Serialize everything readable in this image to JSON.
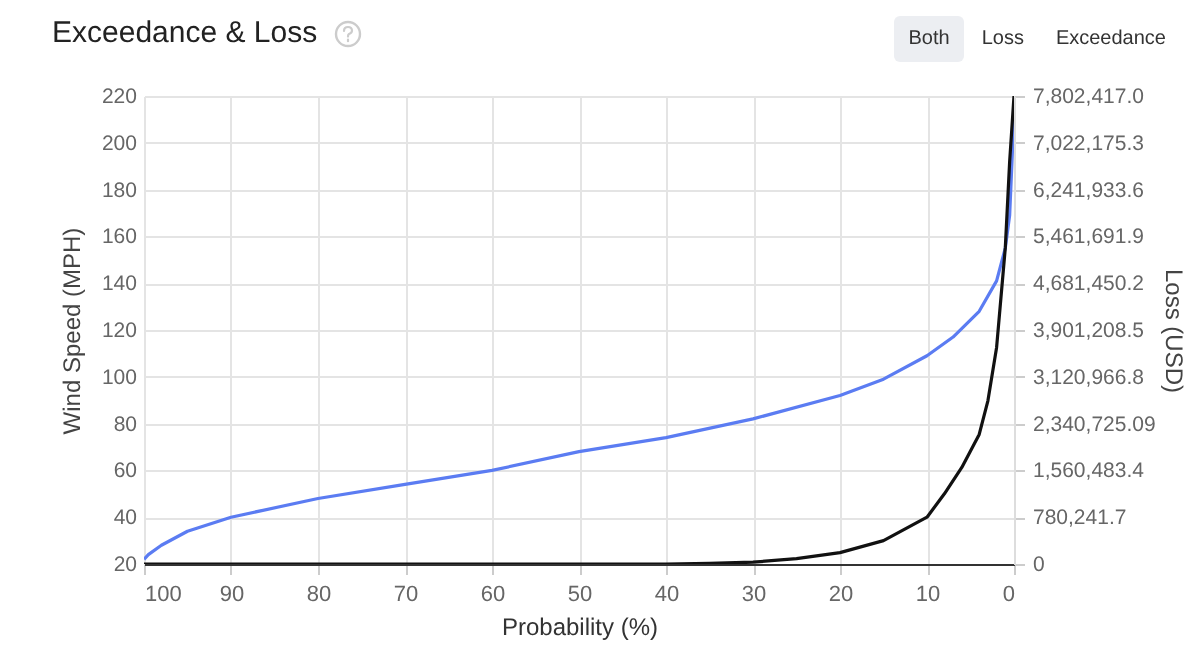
{
  "chart_data": {
    "type": "line",
    "title": "Exceedance & Loss",
    "xlabel": "Probability (%)",
    "ylabel": "Wind Speed (MPH)",
    "y2label": "Loss (USD)",
    "annotations": [
      "Both",
      "Loss",
      "Exceedance"
    ],
    "series": [
      {
        "color": "#5b7cf2",
        "x": [
          100,
          99.5,
          98,
          95,
          90,
          80,
          70,
          60,
          50,
          40,
          30,
          20,
          15,
          10,
          7,
          4,
          2,
          1,
          0.5,
          0
        ],
        "values": [
          22,
          24,
          28,
          34,
          40,
          48,
          54,
          60,
          68,
          74,
          82,
          92,
          99,
          109,
          117,
          128,
          141,
          155,
          169,
          212
        ]
      },
      {
        "color": "#111111",
        "axis": "y2",
        "x": [
          100,
          80,
          60,
          50,
          40,
          35,
          30,
          25,
          20,
          15,
          10,
          8,
          6,
          4,
          3,
          2,
          1,
          0.5,
          0
        ],
        "values": [
          0,
          0,
          0,
          0,
          0,
          10000,
          30000,
          90000,
          190000,
          390000,
          780000,
          1170000,
          1610000,
          2160000,
          2720000,
          3610000,
          5270000,
          6710000,
          7802417
        ]
      }
    ],
    "xlim": [
      100,
      0
    ],
    "xticks": [
      100,
      90,
      80,
      70,
      60,
      50,
      40,
      30,
      20,
      10,
      0
    ],
    "ylim": [
      20,
      220
    ],
    "yticks": [
      20,
      40,
      60,
      80,
      100,
      120,
      140,
      160,
      180,
      200,
      220
    ],
    "y2lim": [
      0,
      7802417
    ],
    "y2ticks": [
      0,
      {
        "value": 780241.7,
        "label": "780,241.7"
      },
      {
        "value": 1560483.4,
        "label": "1,560,483.4"
      },
      {
        "value": 2340725.09,
        "label": "2,340,725.09"
      },
      {
        "value": 3120966.8,
        "label": "3,120,966.8"
      },
      {
        "value": 3901208.5,
        "label": "3,901,208.5"
      },
      {
        "value": 4681450.2,
        "label": "4,681,450.2"
      },
      {
        "value": 5461691.9,
        "label": "5,461,691.9"
      },
      {
        "value": 6241933.6,
        "label": "6,241,933.6"
      },
      {
        "value": 7022175.3,
        "label": "7,022,175.3"
      },
      {
        "value": 7802417,
        "label": "7,802,417.0"
      }
    ],
    "grid": true
  }
}
